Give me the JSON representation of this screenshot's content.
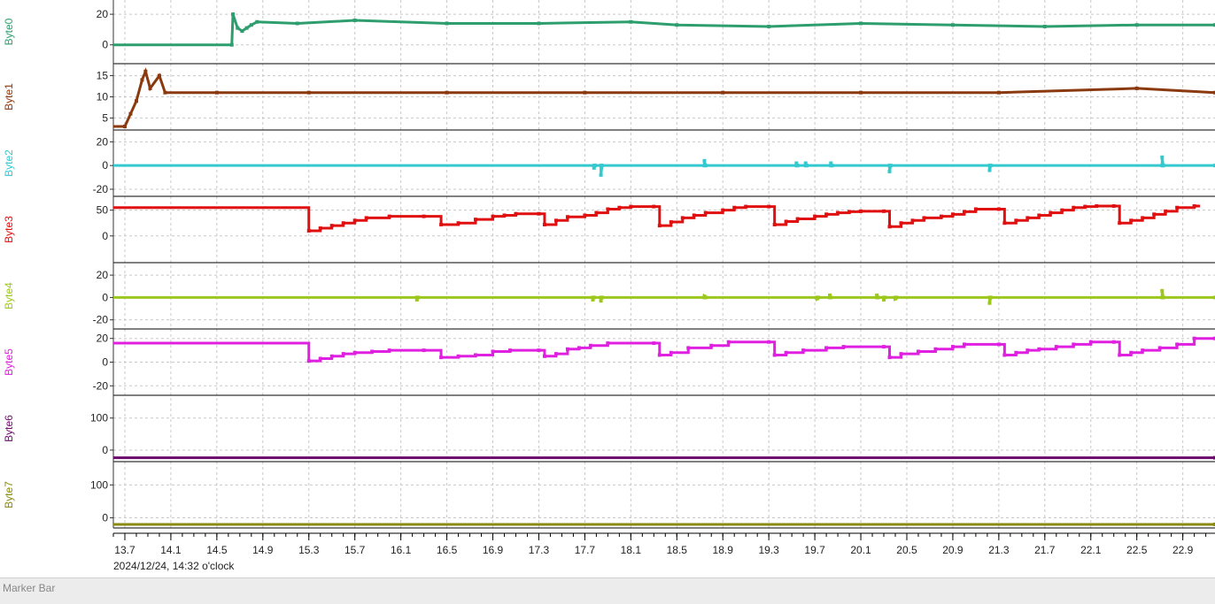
{
  "date_label": "2024/12/24, 14:32 o'clock",
  "marker_bar_label": "Marker Bar",
  "chart_data": {
    "type": "line",
    "xlabel": "",
    "xlim": [
      13.6,
      23.18
    ],
    "x_ticks": [
      "13.7",
      "14.1",
      "14.5",
      "14.9",
      "15.3",
      "15.7",
      "16.1",
      "16.5",
      "16.9",
      "17.3",
      "17.7",
      "18.1",
      "18.5",
      "18.9",
      "19.3",
      "19.7",
      "20.1",
      "20.5",
      "20.9",
      "21.3",
      "21.7",
      "22.1",
      "22.5",
      "22.9"
    ],
    "channels": [
      {
        "name": "Byte0",
        "color": "#2e9e6e",
        "ylim": [
          -10,
          27
        ],
        "y_ticks": [
          0,
          20
        ],
        "points": [
          [
            13.6,
            0
          ],
          [
            14.63,
            0
          ],
          [
            14.64,
            20
          ],
          [
            14.68,
            11
          ],
          [
            14.72,
            9
          ],
          [
            14.76,
            11
          ],
          [
            14.8,
            13
          ],
          [
            14.85,
            15
          ],
          [
            15.2,
            14
          ],
          [
            15.7,
            16
          ],
          [
            16.5,
            14
          ],
          [
            17.3,
            14
          ],
          [
            18.1,
            15
          ],
          [
            18.5,
            13
          ],
          [
            19.3,
            12
          ],
          [
            20.1,
            14
          ],
          [
            20.9,
            13
          ],
          [
            21.7,
            12
          ],
          [
            22.5,
            13
          ],
          [
            23.18,
            13
          ]
        ]
      },
      {
        "name": "Byte1",
        "color": "#8b3a0f",
        "ylim": [
          3,
          17
        ],
        "y_ticks": [
          5,
          10,
          15
        ],
        "points": [
          [
            13.6,
            3
          ],
          [
            13.7,
            3
          ],
          [
            13.75,
            6
          ],
          [
            13.8,
            9
          ],
          [
            13.85,
            14
          ],
          [
            13.88,
            16
          ],
          [
            13.92,
            12
          ],
          [
            14.0,
            15
          ],
          [
            14.05,
            11
          ],
          [
            14.5,
            11
          ],
          [
            15.3,
            11
          ],
          [
            16.5,
            11
          ],
          [
            17.7,
            11
          ],
          [
            18.9,
            11
          ],
          [
            20.1,
            11
          ],
          [
            21.3,
            11
          ],
          [
            22.5,
            12
          ],
          [
            23.18,
            11
          ]
        ]
      },
      {
        "name": "Byte2",
        "color": "#34c9cf",
        "ylim": [
          -23,
          27
        ],
        "y_ticks": [
          -20,
          0,
          20
        ],
        "points": [
          [
            13.6,
            0
          ],
          [
            17.78,
            0
          ],
          [
            17.78,
            -2
          ],
          [
            17.79,
            0
          ],
          [
            17.84,
            0
          ],
          [
            17.84,
            -8
          ],
          [
            17.85,
            0
          ],
          [
            18.74,
            0
          ],
          [
            18.74,
            4
          ],
          [
            18.75,
            0
          ],
          [
            19.54,
            0
          ],
          [
            19.54,
            2
          ],
          [
            19.55,
            0
          ],
          [
            19.62,
            0
          ],
          [
            19.62,
            2
          ],
          [
            19.63,
            0
          ],
          [
            19.84,
            0
          ],
          [
            19.84,
            2
          ],
          [
            19.85,
            0
          ],
          [
            20.35,
            0
          ],
          [
            20.35,
            -5
          ],
          [
            20.36,
            0
          ],
          [
            21.22,
            0
          ],
          [
            21.22,
            -4
          ],
          [
            21.23,
            0
          ],
          [
            22.72,
            0
          ],
          [
            22.72,
            7
          ],
          [
            22.73,
            0
          ],
          [
            23.18,
            0
          ]
        ]
      },
      {
        "name": "Byte3",
        "color": "#e01010",
        "ylim": [
          -45,
          70
        ],
        "y_ticks": [
          0,
          50
        ],
        "steps": [
          [
            13.6,
            55
          ],
          [
            15.3,
            10
          ],
          [
            15.4,
            15
          ],
          [
            15.5,
            20
          ],
          [
            15.6,
            25
          ],
          [
            15.7,
            30
          ],
          [
            15.8,
            35
          ],
          [
            16.0,
            38
          ],
          [
            16.3,
            38
          ],
          [
            16.45,
            22
          ],
          [
            16.6,
            25
          ],
          [
            16.75,
            32
          ],
          [
            16.9,
            38
          ],
          [
            17.0,
            40
          ],
          [
            17.1,
            43
          ],
          [
            17.3,
            43
          ],
          [
            17.35,
            22
          ],
          [
            17.45,
            30
          ],
          [
            17.55,
            37
          ],
          [
            17.7,
            40
          ],
          [
            17.8,
            45
          ],
          [
            17.9,
            52
          ],
          [
            18.0,
            55
          ],
          [
            18.1,
            57
          ],
          [
            18.3,
            57
          ],
          [
            18.35,
            20
          ],
          [
            18.45,
            27
          ],
          [
            18.55,
            35
          ],
          [
            18.65,
            40
          ],
          [
            18.75,
            45
          ],
          [
            18.9,
            50
          ],
          [
            19.0,
            55
          ],
          [
            19.1,
            57
          ],
          [
            19.3,
            57
          ],
          [
            19.35,
            22
          ],
          [
            19.45,
            28
          ],
          [
            19.55,
            33
          ],
          [
            19.7,
            38
          ],
          [
            19.8,
            42
          ],
          [
            19.9,
            45
          ],
          [
            20.0,
            47
          ],
          [
            20.1,
            48
          ],
          [
            20.3,
            48
          ],
          [
            20.35,
            18
          ],
          [
            20.45,
            25
          ],
          [
            20.55,
            30
          ],
          [
            20.65,
            35
          ],
          [
            20.8,
            38
          ],
          [
            20.9,
            42
          ],
          [
            21.0,
            47
          ],
          [
            21.1,
            52
          ],
          [
            21.3,
            52
          ],
          [
            21.35,
            25
          ],
          [
            21.45,
            30
          ],
          [
            21.55,
            35
          ],
          [
            21.65,
            40
          ],
          [
            21.75,
            45
          ],
          [
            21.85,
            50
          ],
          [
            21.95,
            55
          ],
          [
            22.05,
            57
          ],
          [
            22.15,
            58
          ],
          [
            22.3,
            58
          ],
          [
            22.35,
            25
          ],
          [
            22.45,
            30
          ],
          [
            22.55,
            35
          ],
          [
            22.65,
            42
          ],
          [
            22.75,
            48
          ],
          [
            22.85,
            55
          ],
          [
            23.0,
            58
          ]
        ]
      },
      {
        "name": "Byte4",
        "color": "#9cc81e",
        "ylim": [
          -25,
          28
        ],
        "y_ticks": [
          -20,
          0,
          20
        ],
        "points": [
          [
            13.6,
            0
          ],
          [
            16.24,
            0
          ],
          [
            16.24,
            -2
          ],
          [
            16.25,
            0
          ],
          [
            17.77,
            0
          ],
          [
            17.77,
            -2
          ],
          [
            17.78,
            0
          ],
          [
            17.84,
            0
          ],
          [
            17.84,
            -3
          ],
          [
            17.85,
            0
          ],
          [
            18.74,
            0
          ],
          [
            18.74,
            1
          ],
          [
            18.75,
            0
          ],
          [
            19.72,
            0
          ],
          [
            19.72,
            -1
          ],
          [
            19.73,
            0
          ],
          [
            19.83,
            0
          ],
          [
            19.83,
            2
          ],
          [
            19.84,
            0
          ],
          [
            20.24,
            0
          ],
          [
            20.24,
            2
          ],
          [
            20.25,
            0
          ],
          [
            20.3,
            0
          ],
          [
            20.3,
            -2
          ],
          [
            20.31,
            0
          ],
          [
            20.4,
            0
          ],
          [
            20.4,
            -1
          ],
          [
            20.41,
            0
          ],
          [
            21.22,
            0
          ],
          [
            21.22,
            -5
          ],
          [
            21.23,
            0
          ],
          [
            22.72,
            0
          ],
          [
            22.72,
            6
          ],
          [
            22.73,
            0
          ],
          [
            23.18,
            0
          ]
        ]
      },
      {
        "name": "Byte5",
        "color": "#e020e0",
        "ylim": [
          -25,
          25
        ],
        "y_ticks": [
          -20,
          0,
          20
        ],
        "steps": [
          [
            13.6,
            16
          ],
          [
            15.3,
            1
          ],
          [
            15.4,
            3
          ],
          [
            15.5,
            5
          ],
          [
            15.6,
            7
          ],
          [
            15.7,
            8
          ],
          [
            15.85,
            9
          ],
          [
            16.0,
            10
          ],
          [
            16.3,
            10
          ],
          [
            16.45,
            4
          ],
          [
            16.6,
            5
          ],
          [
            16.75,
            6
          ],
          [
            16.9,
            9
          ],
          [
            17.05,
            10
          ],
          [
            17.3,
            10
          ],
          [
            17.35,
            5
          ],
          [
            17.45,
            7
          ],
          [
            17.55,
            11
          ],
          [
            17.65,
            12
          ],
          [
            17.75,
            14
          ],
          [
            17.9,
            16
          ],
          [
            18.3,
            16
          ],
          [
            18.35,
            6
          ],
          [
            18.45,
            8
          ],
          [
            18.6,
            12
          ],
          [
            18.8,
            14
          ],
          [
            18.95,
            17
          ],
          [
            19.3,
            17
          ],
          [
            19.35,
            6
          ],
          [
            19.45,
            8
          ],
          [
            19.6,
            10
          ],
          [
            19.8,
            12
          ],
          [
            19.95,
            13
          ],
          [
            20.3,
            13
          ],
          [
            20.35,
            4
          ],
          [
            20.45,
            7
          ],
          [
            20.6,
            9
          ],
          [
            20.75,
            11
          ],
          [
            20.9,
            13
          ],
          [
            21.0,
            15
          ],
          [
            21.3,
            15
          ],
          [
            21.35,
            6
          ],
          [
            21.45,
            8
          ],
          [
            21.55,
            10
          ],
          [
            21.65,
            11
          ],
          [
            21.8,
            13
          ],
          [
            21.95,
            15
          ],
          [
            22.1,
            17
          ],
          [
            22.3,
            17
          ],
          [
            22.35,
            6
          ],
          [
            22.45,
            8
          ],
          [
            22.55,
            10
          ],
          [
            22.7,
            12
          ],
          [
            22.85,
            15
          ],
          [
            23.0,
            20
          ],
          [
            23.18,
            20
          ]
        ]
      },
      {
        "name": "Byte6",
        "color": "#6a0a6a",
        "ylim": [
          -25,
          160
        ],
        "y_ticks": [
          0,
          100
        ],
        "points": [
          [
            13.6,
            -24
          ],
          [
            23.18,
            -24
          ]
        ]
      },
      {
        "name": "Byte7",
        "color": "#8a8a10",
        "ylim": [
          -20,
          160
        ],
        "y_ticks": [
          0,
          100
        ],
        "points": [
          [
            13.6,
            -20
          ],
          [
            23.18,
            -20
          ]
        ]
      }
    ]
  }
}
